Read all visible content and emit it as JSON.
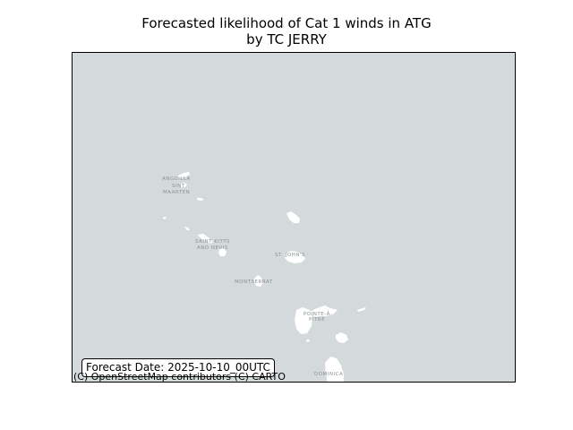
{
  "title": {
    "line1": "Forecasted likelihood of Cat 1 winds in ATG",
    "line2": "by TC JERRY"
  },
  "map": {
    "background_color": "#d4dadc",
    "land_color": "#ffffff",
    "labels": {
      "anguilla": "ANGUILLA",
      "saint_martin_1": "SINT",
      "saint_martin_2": "MAARTEN",
      "st_kitts_1": "SAINT KITTS",
      "st_kitts_2": "AND NEVIS",
      "st_johns": "ST. JOHN'S",
      "montserrat": "MONTSERRAT",
      "pointe_a_pitre_1": "POINTE-À-",
      "pointe_a_pitre_2": "PITRE",
      "dominica": "DOMINICA"
    }
  },
  "forecast_date": "Forecast Date: 2025-10-10_00UTC",
  "attribution": "(C) OpenStreetMap contributors (C) CARTO"
}
